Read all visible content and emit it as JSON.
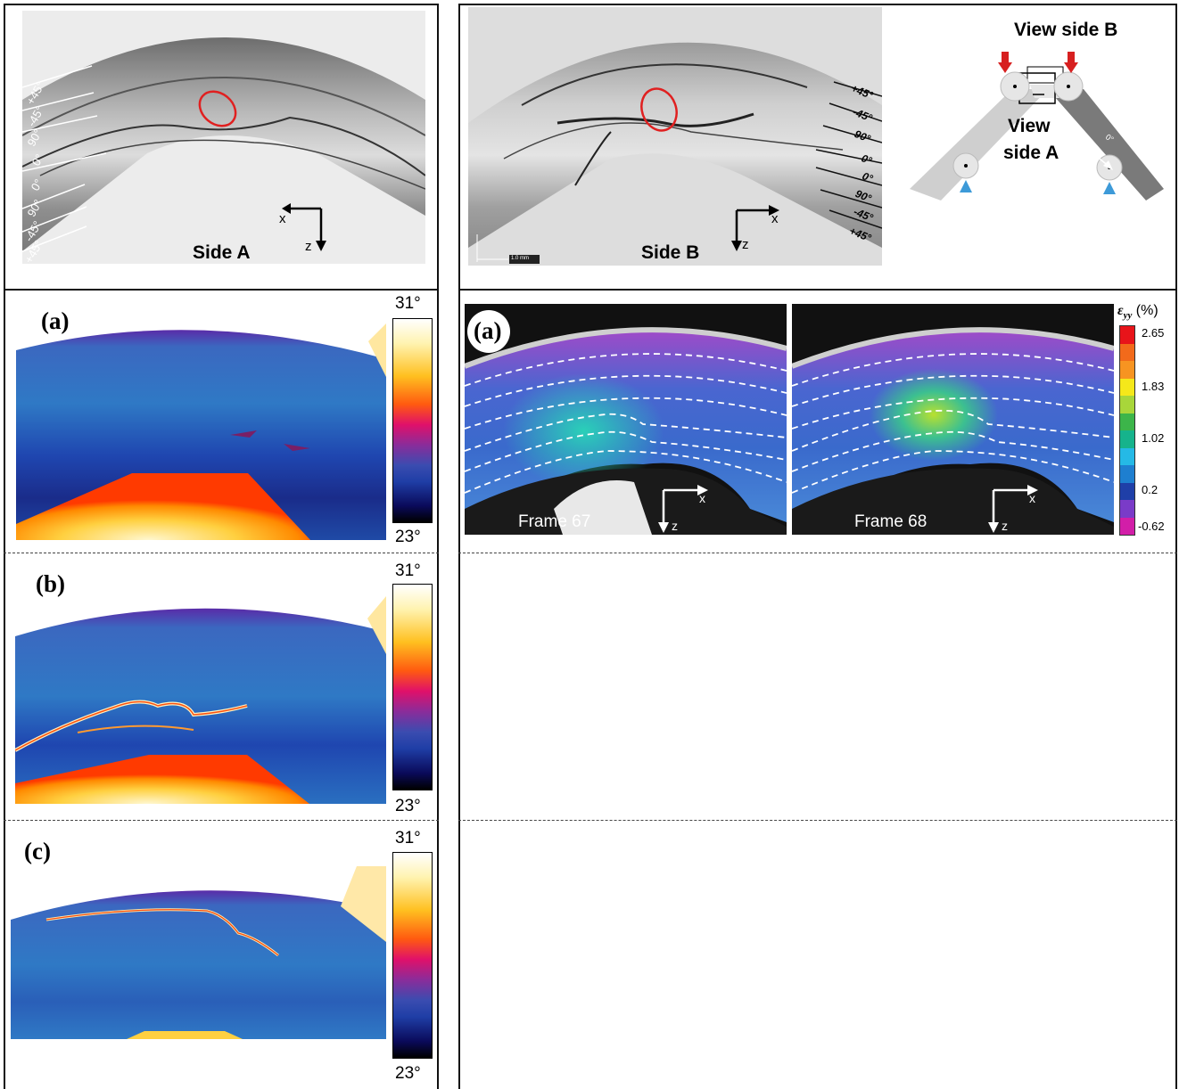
{
  "top_left": {
    "side_label": "Side A",
    "ply_labels": [
      "+45°",
      "-45°",
      "90°",
      "0°",
      "0°",
      "90°",
      "-45°",
      "+45°"
    ],
    "axis_x": "x",
    "axis_z": "z"
  },
  "top_right": {
    "side_label": "Side B",
    "ply_labels": [
      "+45°",
      "-45°",
      "90°",
      "0°",
      "0°",
      "90°",
      "-45°",
      "+45°"
    ],
    "scale_bar": "1.0 mm",
    "axis_x": "x",
    "axis_z": "z",
    "schematic": {
      "view_b": "View side B",
      "view_a_line1": "View",
      "view_a_line2": "side A",
      "ply_angle": "0°"
    }
  },
  "thermal_panels": [
    {
      "label": "(a)",
      "max": "31°",
      "min": "23°"
    },
    {
      "label": "(b)",
      "max": "31°",
      "min": "23°"
    },
    {
      "label": "(c)",
      "max": "31°",
      "min": "23°"
    }
  ],
  "dic_panel": {
    "label": "(a)",
    "frames": [
      "Frame 67",
      "Frame 68"
    ],
    "axis_x": "x",
    "axis_z": "z",
    "colorbar_title": "ε",
    "colorbar_sub": "yy",
    "colorbar_unit": "(%)",
    "colorbar_ticks": [
      "2.65",
      "1.83",
      "1.02",
      "0.2",
      "-0.62"
    ],
    "colorbar_colors": [
      "#e8141a",
      "#f26a1b",
      "#f79421",
      "#f5e81a",
      "#a8d63a",
      "#3cb54a",
      "#16b38c",
      "#25b9e6",
      "#1e7fd0",
      "#1f3fa8",
      "#7a3bc8",
      "#d21ea8"
    ]
  }
}
